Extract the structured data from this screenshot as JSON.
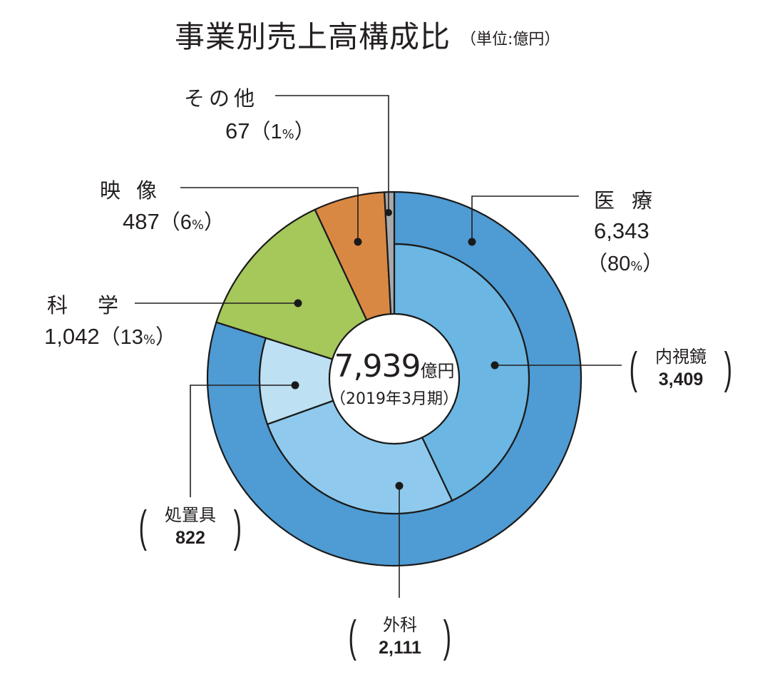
{
  "header": {
    "title": "事業別売上高構成比",
    "unit": "（単位:億円）"
  },
  "center": {
    "total": "7,939",
    "total_unit": "億円",
    "period": "（2019年3月期）"
  },
  "labels": {
    "sonota": {
      "name": "その他",
      "value": "67",
      "pct_open": "（1",
      "pct_sign": "%",
      "pct_close": "）"
    },
    "eizo": {
      "name": "映像",
      "value": "487",
      "pct_open": "（6",
      "pct_sign": "%",
      "pct_close": "）"
    },
    "kagaku": {
      "name": "科学",
      "value": "1,042",
      "pct_open": "（13",
      "pct_sign": "%",
      "pct_close": "）"
    },
    "iryo": {
      "name": "医療",
      "value": "6,343",
      "pct_open": "（80",
      "pct_sign": "%",
      "pct_close": "）"
    },
    "naishikyo": {
      "name": "内視鏡",
      "value": "3,409"
    },
    "geka": {
      "name": "外科",
      "value": "2,111"
    },
    "shochigu": {
      "name": "処置具",
      "value": "822"
    }
  },
  "colors": {
    "iryo": "#4f9bd3",
    "naishikyo": "#6bb6e3",
    "geka": "#8fcaee",
    "shochigu": "#bde0f2",
    "kagaku": "#a6c75a",
    "eizo": "#d98843",
    "sonota": "#a7a9ac",
    "stroke": "#1a1a1a"
  },
  "chart_data": {
    "type": "pie",
    "subtype": "nested-donut",
    "title": "事業別売上高構成比",
    "unit": "億円",
    "period": "2019年3月期",
    "total": 7939,
    "outer": {
      "categories": [
        "医療",
        "科学",
        "映像",
        "その他"
      ],
      "values": [
        6343,
        1042,
        487,
        67
      ],
      "percent": [
        80,
        13,
        6,
        1
      ]
    },
    "inner": {
      "parent": "医療",
      "categories": [
        "内視鏡",
        "外科",
        "処置具"
      ],
      "values": [
        3409,
        2111,
        822
      ]
    },
    "start_angle": "12 o'clock, clockwise"
  }
}
